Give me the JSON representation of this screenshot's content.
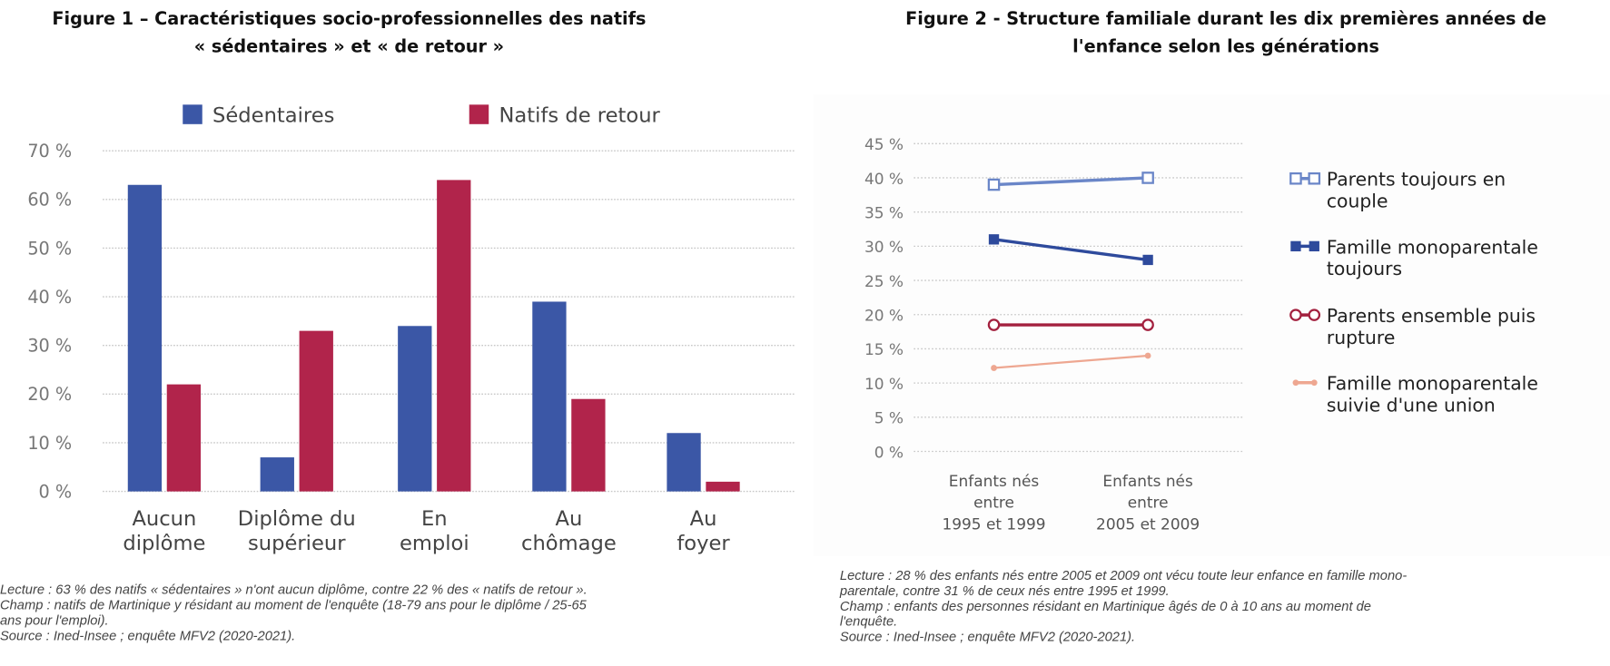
{
  "figure1": {
    "title_line1": "Figure 1 – Caractéristiques socio-professionnelles des natifs",
    "title_line2": "« sédentaires » et « de retour »",
    "notes": [
      "Lecture : 63 % des natifs « sédentaires » n'ont aucun diplôme, contre 22 % des « natifs de retour ».",
      "Champ : natifs de Martinique y résidant au moment de l'enquête (18-79 ans pour le diplôme / 25-65",
      "ans pour l'emploi).",
      "Source : Ined-Insee ; enquête MFV2 (2020-2021)."
    ]
  },
  "figure2": {
    "title_line1": "Figure 2 - Structure familiale durant les dix premières années de",
    "title_line2": "l'enfance selon les générations",
    "notes": [
      "Lecture : 28 % des enfants nés entre 2005 et 2009 ont vécu toute leur enfance en famille mono-",
      "parentale, contre 31 % de ceux nés entre 1995 et 1999.",
      "Champ : enfants des personnes résidant en Martinique âgés de 0 à 10 ans au moment de",
      "l'enquête.",
      "Source : Ined-Insee ; enquête MFV2 (2020-2021)."
    ]
  },
  "chart_data": [
    {
      "type": "bar",
      "categories": [
        [
          "Aucun",
          "diplôme"
        ],
        [
          "Diplôme du",
          "supérieur"
        ],
        [
          "En",
          "emploi"
        ],
        [
          "Au",
          "chômage"
        ],
        [
          "Au",
          "foyer"
        ]
      ],
      "series": [
        {
          "name": "Sédentaires",
          "color": "#3b57a6",
          "values": [
            63,
            7,
            34,
            39,
            12
          ]
        },
        {
          "name": "Natifs de retour",
          "color": "#b1244b",
          "values": [
            22,
            33,
            64,
            19,
            2
          ]
        }
      ],
      "yticks": [
        "0 %",
        "10 %",
        "20 %",
        "30 %",
        "40 %",
        "50 %",
        "60 %",
        "70 %"
      ],
      "ylim": [
        0,
        70
      ],
      "grid": true,
      "legend": "top"
    },
    {
      "type": "line",
      "categories": [
        [
          "Enfants nés",
          "entre",
          "1995 et 1999"
        ],
        [
          "Enfants nés",
          "entre",
          "2005 et 2009"
        ]
      ],
      "series": [
        {
          "name": [
            "Parents toujours en",
            "couple"
          ],
          "color": "#6a86c8",
          "marker": "square-open",
          "values": [
            39,
            40
          ]
        },
        {
          "name": [
            "Famille monoparentale",
            "toujours"
          ],
          "color": "#2e4a9c",
          "marker": "square-filled",
          "values": [
            31,
            28
          ]
        },
        {
          "name": [
            "Parents ensemble puis",
            "rupture"
          ],
          "color": "#a3203e",
          "marker": "circle-open",
          "values": [
            18.5,
            18.5
          ]
        },
        {
          "name": [
            "Famille monoparentale",
            "suivie d'une union"
          ],
          "color": "#eea791",
          "marker": "dot",
          "values": [
            12.2,
            14
          ]
        }
      ],
      "yticks": [
        "0 %",
        "5 %",
        "10 %",
        "15 %",
        "20 %",
        "25 %",
        "30 %",
        "35 %",
        "40 %",
        "45 %"
      ],
      "ylim": [
        0,
        45
      ],
      "grid": true,
      "legend": "right"
    }
  ]
}
